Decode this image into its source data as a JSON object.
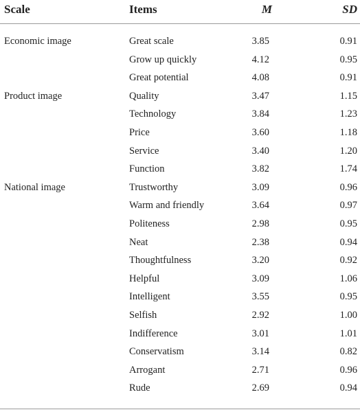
{
  "header": {
    "scale": "Scale",
    "items": "Items",
    "m": "M",
    "sd": "SD"
  },
  "rows": [
    {
      "scale": "Economic image",
      "item": "Great scale",
      "m": "3.85",
      "sd": "0.91"
    },
    {
      "scale": "",
      "item": "Grow up quickly",
      "m": "4.12",
      "sd": "0.95"
    },
    {
      "scale": "",
      "item": "Great potential",
      "m": "4.08",
      "sd": "0.91"
    },
    {
      "scale": "Product image",
      "item": "Quality",
      "m": "3.47",
      "sd": "1.15"
    },
    {
      "scale": "",
      "item": "Technology",
      "m": "3.84",
      "sd": "1.23"
    },
    {
      "scale": "",
      "item": "Price",
      "m": "3.60",
      "sd": "1.18"
    },
    {
      "scale": "",
      "item": "Service",
      "m": "3.40",
      "sd": "1.20"
    },
    {
      "scale": "",
      "item": "Function",
      "m": "3.82",
      "sd": "1.74"
    },
    {
      "scale": "National image",
      "item": "Trustworthy",
      "m": "3.09",
      "sd": "0.96"
    },
    {
      "scale": "",
      "item": "Warm and friendly",
      "m": "3.64",
      "sd": "0.97"
    },
    {
      "scale": "",
      "item": "Politeness",
      "m": "2.98",
      "sd": "0.95"
    },
    {
      "scale": "",
      "item": "Neat",
      "m": "2.38",
      "sd": "0.94"
    },
    {
      "scale": "",
      "item": "Thoughtfulness",
      "m": "3.20",
      "sd": "0.92"
    },
    {
      "scale": "",
      "item": "Helpful",
      "m": "3.09",
      "sd": "1.06"
    },
    {
      "scale": "",
      "item": "Intelligent",
      "m": "3.55",
      "sd": "0.95"
    },
    {
      "scale": "",
      "item": "Selfish",
      "m": "2.92",
      "sd": "1.00"
    },
    {
      "scale": "",
      "item": "Indifference",
      "m": "3.01",
      "sd": "1.01"
    },
    {
      "scale": "",
      "item": "Conservatism",
      "m": "3.14",
      "sd": "0.82"
    },
    {
      "scale": "",
      "item": "Arrogant",
      "m": "2.71",
      "sd": "0.96"
    },
    {
      "scale": "",
      "item": "Rude",
      "m": "2.69",
      "sd": "0.94"
    }
  ]
}
